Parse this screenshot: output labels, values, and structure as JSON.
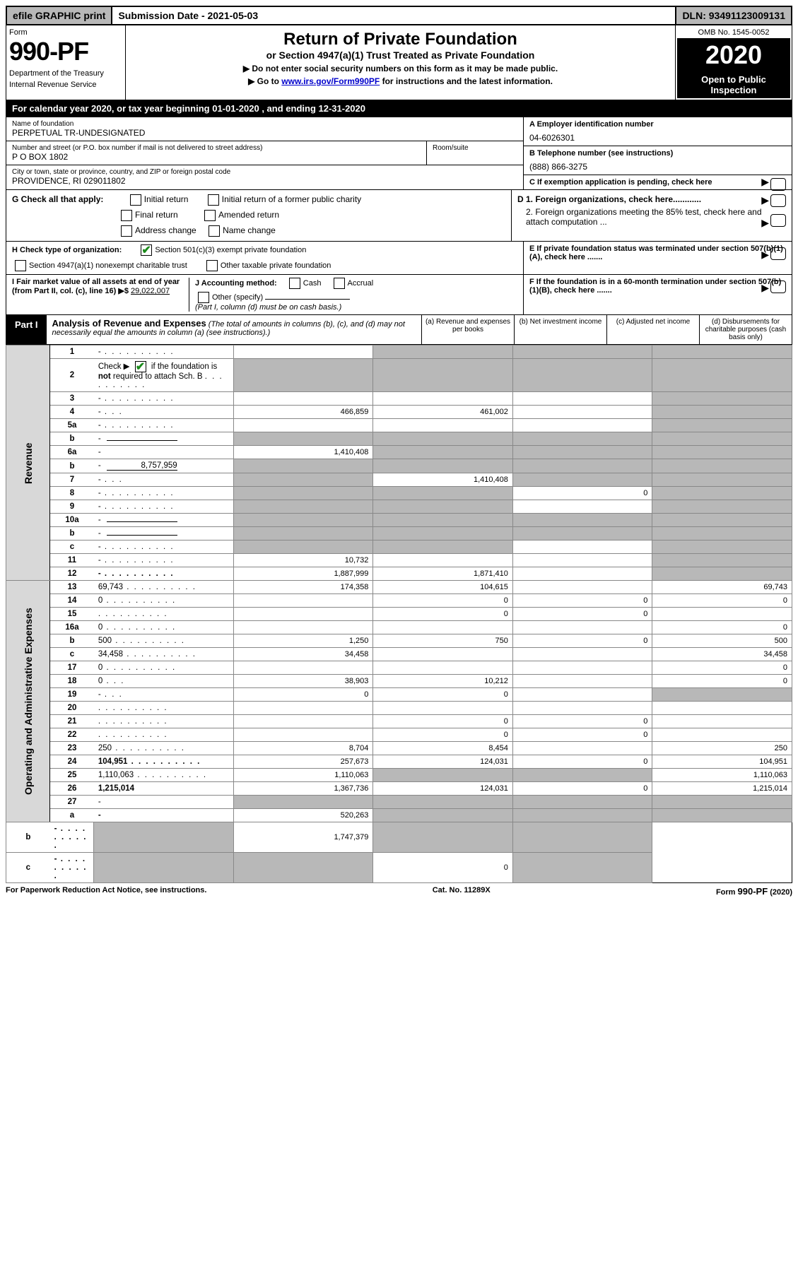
{
  "top": {
    "efile": "efile GRAPHIC print",
    "submission": "Submission Date - 2021-05-03",
    "dln": "DLN: 93491123009131"
  },
  "header": {
    "form_label": "Form",
    "form_number": "990-PF",
    "dept1": "Department of the Treasury",
    "dept2": "Internal Revenue Service",
    "title": "Return of Private Foundation",
    "subtitle": "or Section 4947(a)(1) Trust Treated as Private Foundation",
    "instr1": "▶ Do not enter social security numbers on this form as it may be made public.",
    "instr2_pre": "▶ Go to ",
    "instr2_link": "www.irs.gov/Form990PF",
    "instr2_post": " for instructions and the latest information.",
    "omb": "OMB No. 1545-0052",
    "year": "2020",
    "open": "Open to Public Inspection"
  },
  "cal": "For calendar year 2020, or tax year beginning 01-01-2020                          , and ending 12-31-2020",
  "info": {
    "name_label": "Name of foundation",
    "name": "PERPETUAL TR-UNDESIGNATED",
    "addr_label": "Number and street (or P.O. box number if mail is not delivered to street address)",
    "addr": "P O BOX 1802",
    "room_label": "Room/suite",
    "city_label": "City or town, state or province, country, and ZIP or foreign postal code",
    "city": "PROVIDENCE, RI  029011802",
    "ein_label": "A Employer identification number",
    "ein": "04-6026301",
    "phone_label": "B Telephone number (see instructions)",
    "phone": "(888) 866-3275",
    "c": "C If exemption application is pending, check here",
    "d1": "D 1. Foreign organizations, check here............",
    "d2": "2. Foreign organizations meeting the 85% test, check here and attach computation ...",
    "e": "E  If private foundation status was terminated under section 507(b)(1)(A), check here .......",
    "f": "F  If the foundation is in a 60-month termination under section 507(b)(1)(B), check here .......",
    "g_label": "G Check all that apply:",
    "g_opts": [
      "Initial return",
      "Initial return of a former public charity",
      "Final return",
      "Amended return",
      "Address change",
      "Name change"
    ],
    "h_label": "H Check type of organization:",
    "h_opt1": "Section 501(c)(3) exempt private foundation",
    "h_opt2": "Section 4947(a)(1) nonexempt charitable trust",
    "h_opt3": "Other taxable private foundation",
    "i_label": "I Fair market value of all assets at end of year (from Part II, col. (c), line 16) ▶$",
    "i_val": "29,022,007",
    "j_label": "J Accounting method:",
    "j_cash": "Cash",
    "j_accrual": "Accrual",
    "j_other": "Other (specify)",
    "j_note": "(Part I, column (d) must be on cash basis.)"
  },
  "part1": {
    "label": "Part I",
    "title": "Analysis of Revenue and Expenses",
    "note": " (The total of amounts in columns (b), (c), and (d) may not necessarily equal the amounts in column (a) (see instructions).)",
    "col_a": "(a)    Revenue and expenses per books",
    "col_b": "(b)   Net investment income",
    "col_c": "(c)   Adjusted net income",
    "col_d": "(d)   Disbursements for charitable purposes (cash basis only)"
  },
  "side": {
    "revenue": "Revenue",
    "expenses": "Operating and Administrative Expenses"
  },
  "rows": [
    {
      "n": "1",
      "d": "-",
      "a": "",
      "b": "-",
      "c": "-"
    },
    {
      "n": "2",
      "d": "-",
      "a": "-",
      "b": "-",
      "c": "-",
      "cb": true
    },
    {
      "n": "3",
      "d": "-",
      "a": "",
      "b": "",
      "c": ""
    },
    {
      "n": "4",
      "d": "-",
      "a": "466,859",
      "b": "461,002",
      "c": ""
    },
    {
      "n": "5a",
      "d": "-",
      "a": "",
      "b": "",
      "c": ""
    },
    {
      "n": "b",
      "d": "-",
      "a": "-",
      "b": "-",
      "c": "-",
      "inline": true
    },
    {
      "n": "6a",
      "d": "-",
      "a": "1,410,408",
      "b": "-",
      "c": "-"
    },
    {
      "n": "b",
      "d": "-",
      "a": "-",
      "b": "-",
      "c": "-",
      "inline": true,
      "inval": "8,757,959"
    },
    {
      "n": "7",
      "d": "-",
      "a": "-",
      "b": "1,410,408",
      "c": "-"
    },
    {
      "n": "8",
      "d": "-",
      "a": "-",
      "b": "-",
      "c": "0"
    },
    {
      "n": "9",
      "d": "-",
      "a": "-",
      "b": "-",
      "c": ""
    },
    {
      "n": "10a",
      "d": "-",
      "a": "-",
      "b": "-",
      "c": "-",
      "inline": true
    },
    {
      "n": "b",
      "d": "-",
      "a": "-",
      "b": "-",
      "c": "-",
      "inline": true
    },
    {
      "n": "c",
      "d": "-",
      "a": "-",
      "b": "-",
      "c": ""
    },
    {
      "n": "11",
      "d": "-",
      "a": "10,732",
      "b": "",
      "c": ""
    },
    {
      "n": "12",
      "d": "-",
      "a": "1,887,999",
      "b": "1,871,410",
      "c": "",
      "bold": true
    },
    {
      "n": "13",
      "d": "69,743",
      "a": "174,358",
      "b": "104,615",
      "c": ""
    },
    {
      "n": "14",
      "d": "0",
      "a": "",
      "b": "0",
      "c": "0"
    },
    {
      "n": "15",
      "d": "",
      "a": "",
      "b": "0",
      "c": "0"
    },
    {
      "n": "16a",
      "d": "0",
      "a": "",
      "b": "",
      "c": ""
    },
    {
      "n": "b",
      "d": "500",
      "a": "1,250",
      "b": "750",
      "c": "0"
    },
    {
      "n": "c",
      "d": "34,458",
      "a": "34,458",
      "b": "",
      "c": ""
    },
    {
      "n": "17",
      "d": "0",
      "a": "",
      "b": "",
      "c": ""
    },
    {
      "n": "18",
      "d": "0",
      "a": "38,903",
      "b": "10,212",
      "c": ""
    },
    {
      "n": "19",
      "d": "-",
      "a": "0",
      "b": "0",
      "c": ""
    },
    {
      "n": "20",
      "d": "",
      "a": "",
      "b": "",
      "c": ""
    },
    {
      "n": "21",
      "d": "",
      "a": "",
      "b": "0",
      "c": "0"
    },
    {
      "n": "22",
      "d": "",
      "a": "",
      "b": "0",
      "c": "0"
    },
    {
      "n": "23",
      "d": "250",
      "a": "8,704",
      "b": "8,454",
      "c": ""
    },
    {
      "n": "24",
      "d": "104,951",
      "a": "257,673",
      "b": "124,031",
      "c": "0",
      "bold": true
    },
    {
      "n": "25",
      "d": "1,110,063",
      "a": "1,110,063",
      "b": "-",
      "c": "-"
    },
    {
      "n": "26",
      "d": "1,215,014",
      "a": "1,367,736",
      "b": "124,031",
      "c": "0",
      "bold": true
    },
    {
      "n": "27",
      "d": "-",
      "a": "-",
      "b": "-",
      "c": "-"
    },
    {
      "n": "a",
      "d": "-",
      "a": "520,263",
      "b": "-",
      "c": "-",
      "bold": true
    },
    {
      "n": "b",
      "d": "-",
      "a": "-",
      "b": "1,747,379",
      "c": "-",
      "bold": true
    },
    {
      "n": "c",
      "d": "-",
      "a": "-",
      "b": "-",
      "c": "0",
      "bold": true
    }
  ],
  "footer": {
    "left": "For Paperwork Reduction Act Notice, see instructions.",
    "mid": "Cat. No. 11289X",
    "right": "Form 990-PF (2020)"
  }
}
